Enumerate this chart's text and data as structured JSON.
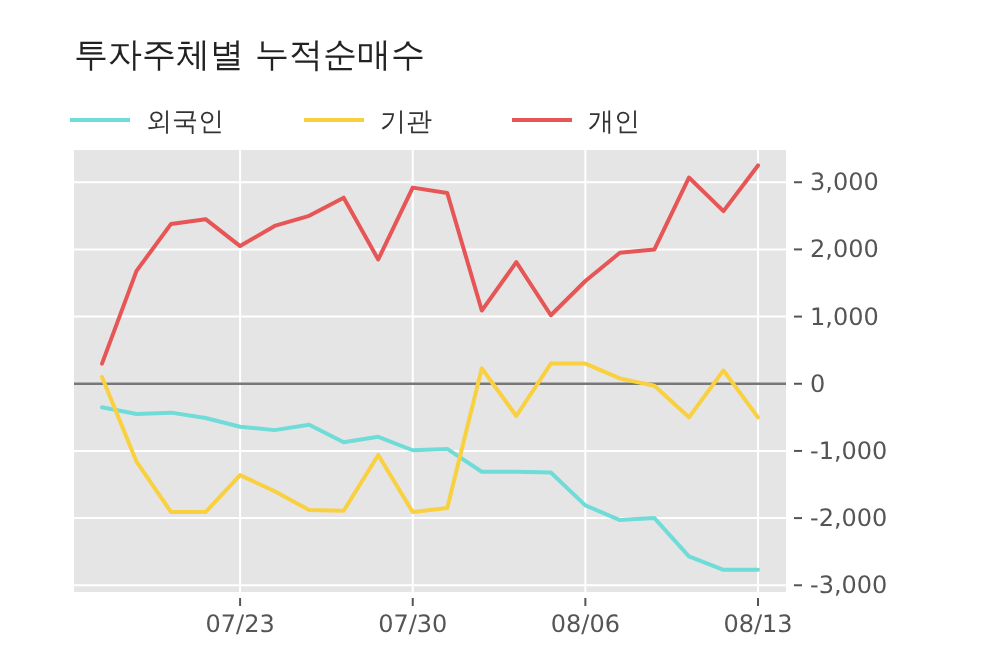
{
  "chart_data": {
    "type": "line",
    "title": "투자주체별 누적순매수",
    "categories": [
      null,
      null,
      null,
      null,
      "07/23",
      null,
      null,
      null,
      null,
      "07/30",
      null,
      null,
      null,
      null,
      "08/06",
      null,
      null,
      null,
      null,
      "08/13"
    ],
    "series": [
      {
        "name": "외국인",
        "color": "#6fdcd8",
        "values": [
          -350,
          -450,
          -430,
          -510,
          -640,
          -690,
          -610,
          -870,
          -790,
          -990,
          -970,
          -1310,
          -1310,
          -1320,
          -1810,
          -2030,
          -2000,
          -2570,
          -2770,
          -2770
        ]
      },
      {
        "name": "기관",
        "color": "#f9d03f",
        "values": [
          100,
          -1160,
          -1910,
          -1910,
          -1360,
          -1600,
          -1880,
          -1890,
          -1060,
          -1910,
          -1850,
          230,
          -480,
          300,
          300,
          80,
          -30,
          -500,
          200,
          -500
        ]
      },
      {
        "name": "개인",
        "color": "#e65656",
        "values": [
          300,
          1680,
          2380,
          2450,
          2050,
          2350,
          2500,
          2770,
          1850,
          2920,
          2840,
          1090,
          1810,
          1020,
          1530,
          1950,
          2000,
          3070,
          2570,
          3250
        ]
      }
    ],
    "ylim": [
      -3100,
      3480
    ],
    "yticks": [
      {
        "value": -3000,
        "label": "-3,000"
      },
      {
        "value": -2000,
        "label": "-2,000"
      },
      {
        "value": -1000,
        "label": "-1,000"
      },
      0,
      {
        "value": 1000,
        "label": "1,000"
      },
      {
        "value": 2000,
        "label": "2,000"
      },
      {
        "value": 3000,
        "label": "3,000"
      }
    ],
    "ref_lines": [
      {
        "axis": "y",
        "value": 0,
        "color": "#777777"
      }
    ],
    "grid": true,
    "legend": "top left",
    "line_style": "solid",
    "marker": "none"
  }
}
